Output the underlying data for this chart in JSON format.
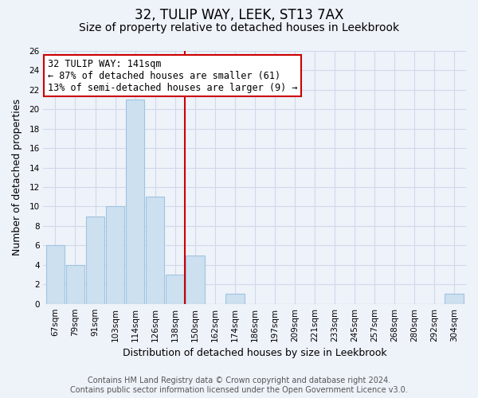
{
  "title": "32, TULIP WAY, LEEK, ST13 7AX",
  "subtitle": "Size of property relative to detached houses in Leekbrook",
  "xlabel": "Distribution of detached houses by size in Leekbrook",
  "ylabel": "Number of detached properties",
  "categories": [
    "67sqm",
    "79sqm",
    "91sqm",
    "103sqm",
    "114sqm",
    "126sqm",
    "138sqm",
    "150sqm",
    "162sqm",
    "174sqm",
    "186sqm",
    "197sqm",
    "209sqm",
    "221sqm",
    "233sqm",
    "245sqm",
    "257sqm",
    "268sqm",
    "280sqm",
    "292sqm",
    "304sqm"
  ],
  "values": [
    6,
    4,
    9,
    10,
    21,
    11,
    3,
    5,
    0,
    1,
    0,
    0,
    0,
    0,
    0,
    0,
    0,
    0,
    0,
    0,
    1
  ],
  "bar_color": "#cce0f0",
  "bar_edge_color": "#a0c4e0",
  "vline_color": "#cc0000",
  "vline_after_index": 6,
  "annotation_line1": "32 TULIP WAY: 141sqm",
  "annotation_line2": "← 87% of detached houses are smaller (61)",
  "annotation_line3": "13% of semi-detached houses are larger (9) →",
  "ann_box_color": "white",
  "ann_edge_color": "#cc0000",
  "ylim": [
    0,
    26
  ],
  "yticks": [
    0,
    2,
    4,
    6,
    8,
    10,
    12,
    14,
    16,
    18,
    20,
    22,
    24,
    26
  ],
  "footer_line1": "Contains HM Land Registry data © Crown copyright and database right 2024.",
  "footer_line2": "Contains public sector information licensed under the Open Government Licence v3.0.",
  "background_color": "#eef2f9",
  "grid_color": "#d0d8ea",
  "title_fontsize": 12,
  "subtitle_fontsize": 10,
  "axis_label_fontsize": 9,
  "tick_fontsize": 7.5,
  "annotation_fontsize": 8.5,
  "footer_fontsize": 7
}
